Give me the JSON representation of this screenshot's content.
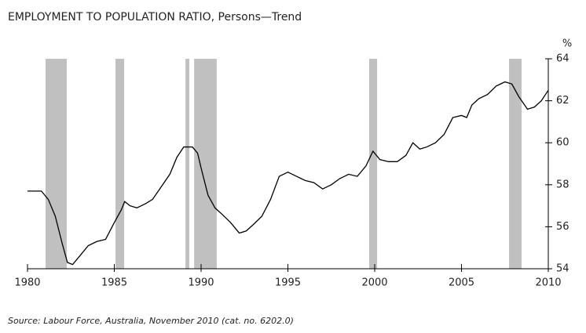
{
  "chart_data": {
    "type": "line",
    "title": "EMPLOYMENT TO POPULATION RATIO, Persons—Trend",
    "source": "Source: Labour Force, Australia, November 2010 (cat. no. 6202.0)",
    "y_unit": "%",
    "x": [
      1980,
      1980.8,
      1981.2,
      1981.6,
      1982.0,
      1982.3,
      1982.6,
      1983.0,
      1983.5,
      1984.0,
      1984.5,
      1985.0,
      1985.4,
      1985.6,
      1985.9,
      1986.3,
      1986.8,
      1987.2,
      1987.7,
      1988.2,
      1988.6,
      1989.0,
      1989.5,
      1989.8,
      1990.0,
      1990.4,
      1990.8,
      1991.2,
      1991.7,
      1992.2,
      1992.6,
      1993.0,
      1993.5,
      1994.0,
      1994.5,
      1995.0,
      1995.5,
      1996.0,
      1996.5,
      1997.0,
      1997.5,
      1998.0,
      1998.5,
      1999.0,
      1999.5,
      1999.9,
      2000.3,
      2000.8,
      2001.3,
      2001.8,
      2002.2,
      2002.6,
      2003.0,
      2003.5,
      2004.0,
      2004.5,
      2005.0,
      2005.3,
      2005.6,
      2006.0,
      2006.5,
      2007.0,
      2007.5,
      2007.9,
      2008.3,
      2008.8,
      2009.2,
      2009.6,
      2010.0
    ],
    "values": [
      57.7,
      57.7,
      57.3,
      56.5,
      55.2,
      54.3,
      54.2,
      54.6,
      55.1,
      55.3,
      55.4,
      56.2,
      56.8,
      57.2,
      57.0,
      56.9,
      57.1,
      57.3,
      57.9,
      58.5,
      59.3,
      59.8,
      59.8,
      59.5,
      58.8,
      57.5,
      56.9,
      56.6,
      56.2,
      55.7,
      55.8,
      56.1,
      56.5,
      57.3,
      58.4,
      58.6,
      58.4,
      58.2,
      58.1,
      57.8,
      58.0,
      58.3,
      58.5,
      58.4,
      58.9,
      59.6,
      59.2,
      59.1,
      59.1,
      59.4,
      60.0,
      59.7,
      59.8,
      60.0,
      60.4,
      61.2,
      61.3,
      61.2,
      61.8,
      62.1,
      62.3,
      62.7,
      62.9,
      62.8,
      62.2,
      61.6,
      61.7,
      62.0,
      62.5
    ],
    "color": "#000000",
    "shaded_periods": [
      [
        1981.04,
        1982.26
      ],
      [
        1985.07,
        1985.57
      ],
      [
        1989.1,
        1989.32
      ],
      [
        1989.6,
        1990.9
      ],
      [
        1999.68,
        2000.14
      ],
      [
        2007.74,
        2008.46
      ]
    ],
    "shade_color": "#c0c0c0",
    "xlim": [
      1980,
      2010
    ],
    "xticks": [
      1980,
      1985,
      1990,
      1995,
      2000,
      2005,
      2010
    ],
    "ylim": [
      54,
      64
    ],
    "yticks": [
      54,
      56,
      58,
      60,
      62,
      64
    ]
  }
}
